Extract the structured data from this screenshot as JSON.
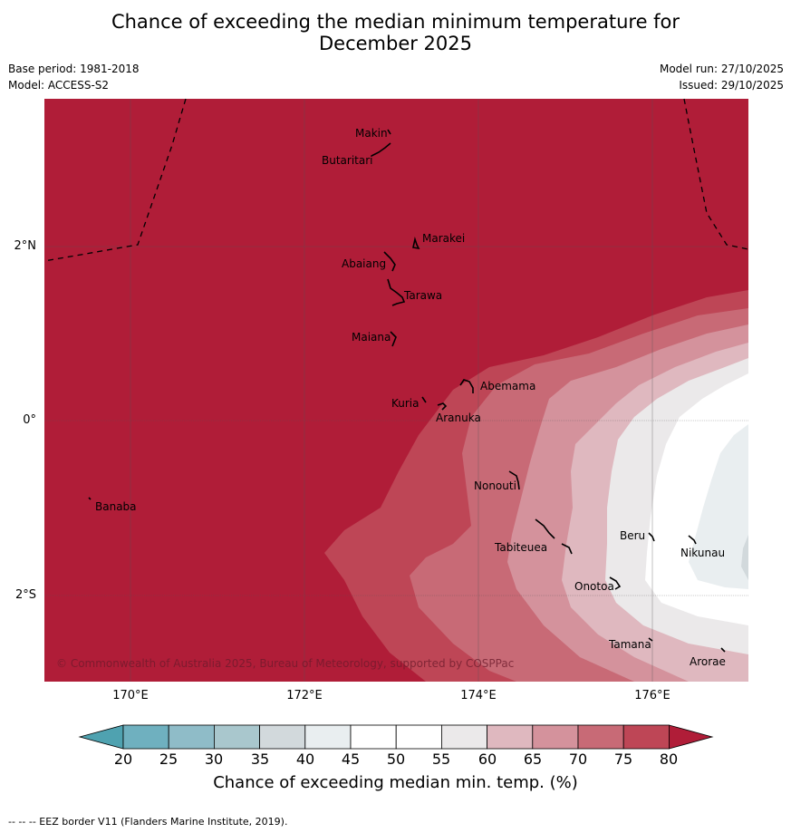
{
  "header": {
    "title_line1": "Chance of exceeding the median minimum temperature for",
    "title_line2": "December 2025",
    "base_period": "Base period: 1981-2018",
    "model": "Model: ACCESS-S2",
    "model_run": "Model run: 27/10/2025",
    "issued": "Issued: 29/10/2025"
  },
  "map": {
    "lat_labels": [
      "2°N",
      "0°",
      "2°S"
    ],
    "lon_labels": [
      "170°E",
      "172°E",
      "174°E",
      "176°E"
    ],
    "places": [
      "Makin",
      "Butaritari",
      "Marakei",
      "Abaiang",
      "Tarawa",
      "Maiana",
      "Abemama",
      "Kuria",
      "Aranuka",
      "Nonouti",
      "Banaba",
      "Beru",
      "Nikunau",
      "Tabiteuea",
      "Onotoa",
      "Tamana",
      "Arorae"
    ],
    "copyright": "© Commonwealth of Australia 2025, Bureau of Meteorology, supported by COSPPac"
  },
  "colorbar": {
    "ticks": [
      "20",
      "25",
      "30",
      "35",
      "40",
      "45",
      "50",
      "55",
      "60",
      "65",
      "70",
      "75",
      "80"
    ],
    "label": "Chance of exceeding median min. temp. (%)",
    "colors": {
      "under": "#4fa2b0",
      "c20": "#6fb0bf",
      "c25": "#8fbcc8",
      "c30": "#a9c7cd",
      "c35": "#d2d9dc",
      "c40": "#e9eef0",
      "c45": "#ffffff",
      "c50": "#ffffff",
      "c55": "#ebe9ea",
      "c60": "#dfb8bf",
      "c65": "#d4929c",
      "c70": "#c86a76",
      "c75": "#be4656",
      "over": "#b01d38"
    }
  },
  "footer": "--  --  -- EEZ border V11 (Flanders Marine Institute, 2019)."
}
